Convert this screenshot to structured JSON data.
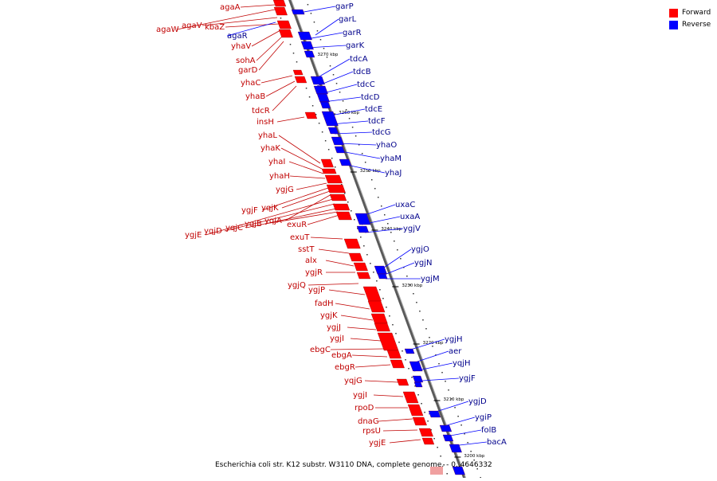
{
  "caption": "Escherichia coli str. K12 substr. W3110 DNA, complete genome. - 0..4646332",
  "legend": [
    {
      "label": "Forward",
      "color": "#ff0000"
    },
    {
      "label": "Reverse",
      "color": "#0000ff"
    }
  ],
  "colors": {
    "forward": "#ff0000",
    "reverse": "#0000ff",
    "forward_label": "#c00000",
    "reverse_label": "#00008b",
    "axis": "#808080"
  },
  "ticks": [
    "3270 kbp",
    "3260 kbp",
    "3250 kbp",
    "3240 kbp",
    "3230 kbp",
    "3220 kbp",
    "3210 kbp",
    "3200 kbp"
  ],
  "forward_genes": [
    "agaA",
    "agaW",
    "agaV",
    "kbaZ",
    "yhaV",
    "sohA",
    "garD",
    "yhaC",
    "yhaB",
    "tdcR",
    "insH",
    "yhaL",
    "yhaK",
    "yhaI",
    "yhaH",
    "ygjG",
    "ygjF",
    "yqjK",
    "yqjA",
    "ygjE",
    "yqjD",
    "yqjC",
    "yqjB",
    "exuR",
    "exuT",
    "sstT",
    "alx",
    "ygjR",
    "ygjQ",
    "ygjP",
    "fadH",
    "ygjK",
    "ygjJ",
    "ygjI",
    "ebgC",
    "ebgA",
    "ebgR",
    "yqjG",
    "ygjI",
    "rpoD",
    "dnaG",
    "rpsU",
    "ygjE"
  ],
  "reverse_genes": [
    "garP",
    "garL",
    "agaR",
    "garR",
    "garK",
    "tdcA",
    "tdcB",
    "tdcC",
    "tdcD",
    "tdcE",
    "tdcF",
    "tdcG",
    "yhaO",
    "yhaM",
    "yhaJ",
    "uxaC",
    "uxaA",
    "ygjV",
    "ygjO",
    "ygjN",
    "ygjM",
    "ygjH",
    "aer",
    "yqjH",
    "ygjF",
    "ygjD",
    "ygiP",
    "folB",
    "bacA"
  ]
}
